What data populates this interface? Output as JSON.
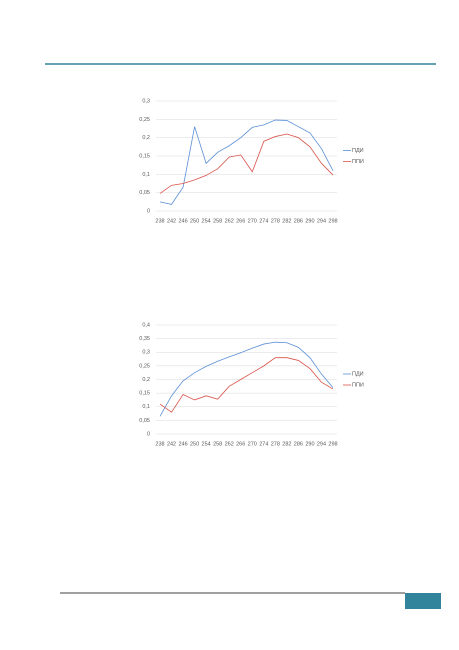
{
  "charts": [
    {
      "chart_data": {
        "type": "line",
        "legend": "right",
        "grid": true,
        "categories": [
          "238",
          "242",
          "246",
          "250",
          "254",
          "258",
          "262",
          "266",
          "270",
          "274",
          "278",
          "282",
          "286",
          "290",
          "294",
          "298"
        ],
        "ylim": [
          0,
          0.3
        ],
        "yticks": [
          {
            "value": 0,
            "label": "0"
          },
          {
            "value": 0.05,
            "label": "0,05"
          },
          {
            "value": 0.1,
            "label": "0,1"
          },
          {
            "value": 0.15,
            "label": "0,15"
          },
          {
            "value": 0.2,
            "label": "0,2"
          },
          {
            "value": 0.25,
            "label": "0,25"
          },
          {
            "value": 0.3,
            "label": "0,3"
          }
        ],
        "series": [
          {
            "name": "ПДИ",
            "color": "#5b8fd6",
            "values": [
              0.025,
              0.018,
              0.065,
              0.23,
              0.13,
              0.16,
              0.178,
              0.2,
              0.228,
              0.235,
              0.248,
              0.247,
              0.23,
              0.213,
              0.17,
              0.11
            ]
          },
          {
            "name": "ППИ",
            "color": "#d9534a",
            "values": [
              0.048,
              0.07,
              0.075,
              0.085,
              0.097,
              0.115,
              0.147,
              0.153,
              0.107,
              0.19,
              0.203,
              0.21,
              0.2,
              0.175,
              0.13,
              0.098
            ]
          }
        ]
      }
    },
    {
      "chart_data": {
        "type": "line",
        "legend": "right",
        "grid": true,
        "categories": [
          "238",
          "242",
          "246",
          "250",
          "254",
          "258",
          "262",
          "266",
          "270",
          "274",
          "278",
          "282",
          "286",
          "290",
          "294",
          "298"
        ],
        "ylim": [
          0,
          0.4
        ],
        "yticks": [
          {
            "value": 0,
            "label": "0"
          },
          {
            "value": 0.05,
            "label": "0,05"
          },
          {
            "value": 0.1,
            "label": "0,1"
          },
          {
            "value": 0.15,
            "label": "0,15"
          },
          {
            "value": 0.2,
            "label": "0,2"
          },
          {
            "value": 0.25,
            "label": "0,25"
          },
          {
            "value": 0.3,
            "label": "0,3"
          },
          {
            "value": 0.35,
            "label": "0,35"
          },
          {
            "value": 0.4,
            "label": "0,4"
          }
        ],
        "series": [
          {
            "name": "ПДИ",
            "color": "#5b8fd6",
            "values": [
              0.065,
              0.14,
              0.195,
              0.225,
              0.248,
              0.267,
              0.283,
              0.298,
              0.315,
              0.33,
              0.337,
              0.335,
              0.318,
              0.28,
              0.22,
              0.17
            ]
          },
          {
            "name": "ППИ",
            "color": "#d9534a",
            "values": [
              0.11,
              0.08,
              0.145,
              0.125,
              0.14,
              0.128,
              0.175,
              0.2,
              0.225,
              0.25,
              0.28,
              0.28,
              0.27,
              0.24,
              0.19,
              0.165
            ]
          }
        ]
      }
    }
  ]
}
